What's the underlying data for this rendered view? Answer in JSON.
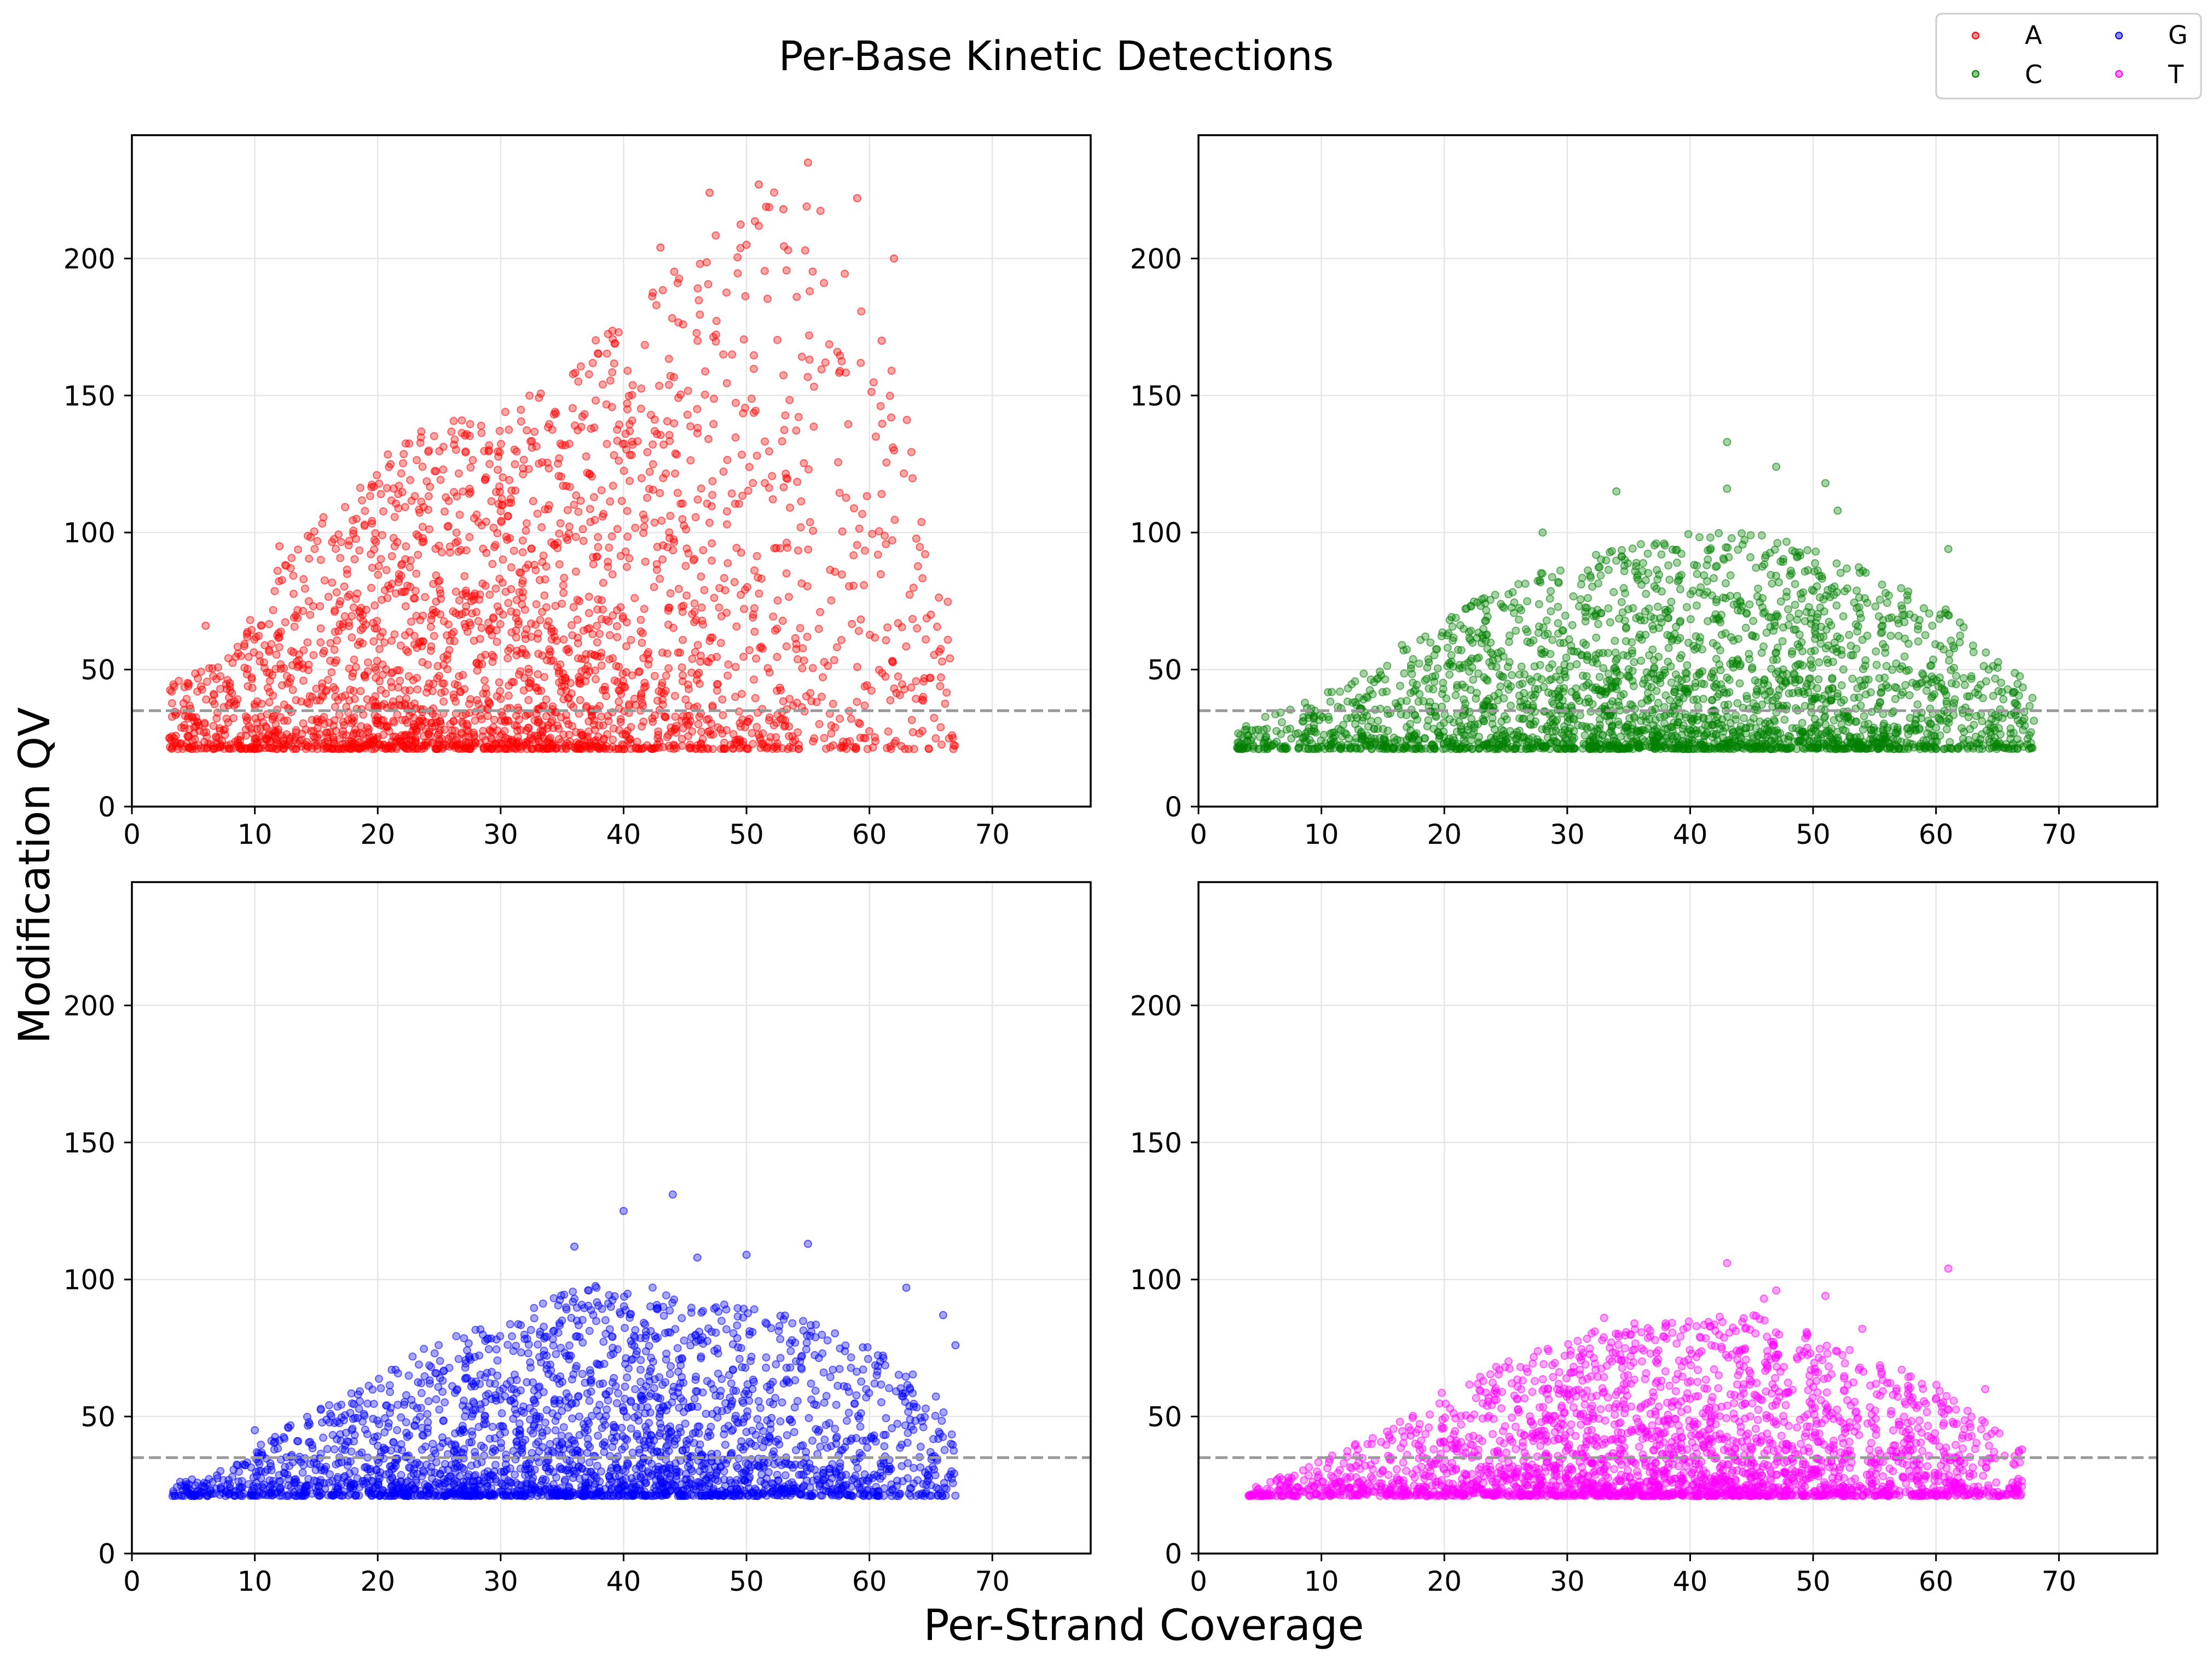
{
  "figure": {
    "title": "Per-Base Kinetic Detections",
    "xlabel": "Per-Strand Coverage",
    "ylabel": "Modification QV"
  },
  "legend": {
    "placement": "top-right",
    "entries": [
      {
        "label": "A",
        "color": "#ff0000"
      },
      {
        "label": "C",
        "color": "#008000"
      },
      {
        "label": "G",
        "color": "#0000ff"
      },
      {
        "label": "T",
        "color": "#ff00ff"
      }
    ]
  },
  "chart_data": [
    {
      "type": "scatter",
      "series_name": "A",
      "color": "#ff0000",
      "xlim": [
        0,
        78
      ],
      "ylim": [
        0,
        245
      ],
      "xticks": [
        0,
        10,
        20,
        30,
        40,
        50,
        60,
        70
      ],
      "yticks": [
        0,
        50,
        100,
        150,
        200
      ],
      "threshold": 35,
      "grid": true,
      "x_range": [
        3,
        67
      ],
      "y_floor": 21,
      "peak_x": 30,
      "envelope": [
        [
          3,
          45
        ],
        [
          8,
          55
        ],
        [
          12,
          90
        ],
        [
          16,
          110
        ],
        [
          20,
          130
        ],
        [
          25,
          140
        ],
        [
          30,
          145
        ],
        [
          35,
          160
        ],
        [
          40,
          180
        ],
        [
          45,
          200
        ],
        [
          50,
          220
        ],
        [
          55,
          230
        ],
        [
          60,
          180
        ],
        [
          63,
          160
        ],
        [
          67,
          60
        ]
      ],
      "outliers": [
        [
          55,
          235
        ],
        [
          51,
          227
        ],
        [
          47,
          224
        ],
        [
          59,
          222
        ],
        [
          53,
          218
        ],
        [
          50,
          205
        ],
        [
          62,
          200
        ],
        [
          43,
          204
        ],
        [
          6,
          66
        ],
        [
          12,
          95
        ],
        [
          65,
          70
        ],
        [
          61,
          170
        ],
        [
          62,
          130
        ]
      ]
    },
    {
      "type": "scatter",
      "series_name": "C",
      "color": "#008000",
      "xlim": [
        0,
        78
      ],
      "ylim": [
        0,
        245
      ],
      "xticks": [
        0,
        10,
        20,
        30,
        40,
        50,
        60,
        70
      ],
      "yticks": [
        0,
        50,
        100,
        150,
        200
      ],
      "threshold": 35,
      "grid": true,
      "x_range": [
        3,
        68
      ],
      "y_floor": 21,
      "peak_x": 40,
      "envelope": [
        [
          3,
          28
        ],
        [
          8,
          38
        ],
        [
          12,
          45
        ],
        [
          20,
          70
        ],
        [
          30,
          90
        ],
        [
          40,
          100
        ],
        [
          45,
          100
        ],
        [
          50,
          95
        ],
        [
          55,
          85
        ],
        [
          60,
          75
        ],
        [
          64,
          60
        ],
        [
          68,
          45
        ]
      ],
      "outliers": [
        [
          43,
          133
        ],
        [
          47,
          124
        ],
        [
          51,
          118
        ],
        [
          52,
          108
        ],
        [
          34,
          115
        ],
        [
          43,
          116
        ],
        [
          28,
          100
        ],
        [
          61,
          94
        ]
      ]
    },
    {
      "type": "scatter",
      "series_name": "G",
      "color": "#0000ff",
      "xlim": [
        0,
        78
      ],
      "ylim": [
        0,
        245
      ],
      "xticks": [
        0,
        10,
        20,
        30,
        40,
        50,
        60,
        70
      ],
      "yticks": [
        0,
        50,
        100,
        150,
        200
      ],
      "threshold": 35,
      "grid": true,
      "x_range": [
        3,
        67
      ],
      "y_floor": 21,
      "peak_x": 38,
      "envelope": [
        [
          3,
          25
        ],
        [
          8,
          32
        ],
        [
          12,
          45
        ],
        [
          18,
          60
        ],
        [
          25,
          78
        ],
        [
          30,
          85
        ],
        [
          35,
          95
        ],
        [
          40,
          100
        ],
        [
          45,
          95
        ],
        [
          50,
          90
        ],
        [
          55,
          85
        ],
        [
          60,
          75
        ],
        [
          64,
          65
        ],
        [
          67,
          50
        ]
      ],
      "outliers": [
        [
          44,
          131
        ],
        [
          40,
          125
        ],
        [
          55,
          113
        ],
        [
          36,
          112
        ],
        [
          50,
          109
        ],
        [
          46,
          108
        ],
        [
          63,
          97
        ],
        [
          67,
          76
        ],
        [
          66,
          87
        ],
        [
          10,
          45
        ]
      ]
    },
    {
      "type": "scatter",
      "series_name": "T",
      "color": "#ff00ff",
      "xlim": [
        0,
        78
      ],
      "ylim": [
        0,
        245
      ],
      "xticks": [
        0,
        10,
        20,
        30,
        40,
        50,
        60,
        70
      ],
      "yticks": [
        0,
        50,
        100,
        150,
        200
      ],
      "threshold": 35,
      "grid": true,
      "x_range": [
        4,
        67
      ],
      "y_floor": 21,
      "peak_x": 38,
      "envelope": [
        [
          4,
          24
        ],
        [
          8,
          30
        ],
        [
          12,
          38
        ],
        [
          18,
          55
        ],
        [
          25,
          70
        ],
        [
          30,
          78
        ],
        [
          35,
          85
        ],
        [
          40,
          85
        ],
        [
          45,
          88
        ],
        [
          50,
          80
        ],
        [
          55,
          72
        ],
        [
          60,
          62
        ],
        [
          64,
          50
        ],
        [
          67,
          38
        ]
      ],
      "outliers": [
        [
          43,
          106
        ],
        [
          61,
          104
        ],
        [
          47,
          96
        ],
        [
          51,
          94
        ],
        [
          46,
          93
        ],
        [
          33,
          86
        ],
        [
          38,
          84
        ],
        [
          54,
          82
        ],
        [
          64,
          60
        ],
        [
          67,
          38
        ]
      ]
    }
  ]
}
